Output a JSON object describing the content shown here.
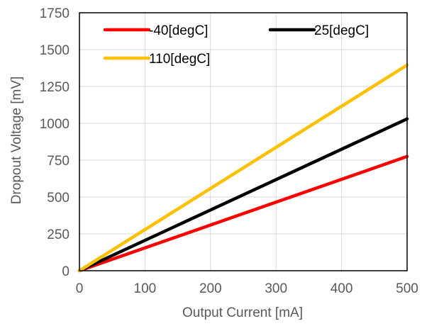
{
  "chart_data": {
    "type": "line",
    "xlabel": "Output Current [mA]",
    "ylabel": "Dropout Voltage [mV]",
    "xlim": [
      0,
      500
    ],
    "ylim": [
      0,
      1750
    ],
    "x_ticks": [
      0,
      100,
      200,
      300,
      400,
      500
    ],
    "y_ticks": [
      0,
      250,
      500,
      750,
      1000,
      1250,
      1500,
      1750
    ],
    "grid": true,
    "legend_position": "top-inside",
    "series": [
      {
        "name": "-40[degC]",
        "color": "#ff0000",
        "x": [
          0,
          500
        ],
        "y": [
          0,
          775
        ]
      },
      {
        "name": "25[degC]",
        "color": "#000000",
        "x": [
          0,
          500
        ],
        "y": [
          0,
          1030
        ]
      },
      {
        "name": "110[degC]",
        "color": "#ffc000",
        "x": [
          0,
          500
        ],
        "y": [
          0,
          1395
        ]
      }
    ]
  }
}
